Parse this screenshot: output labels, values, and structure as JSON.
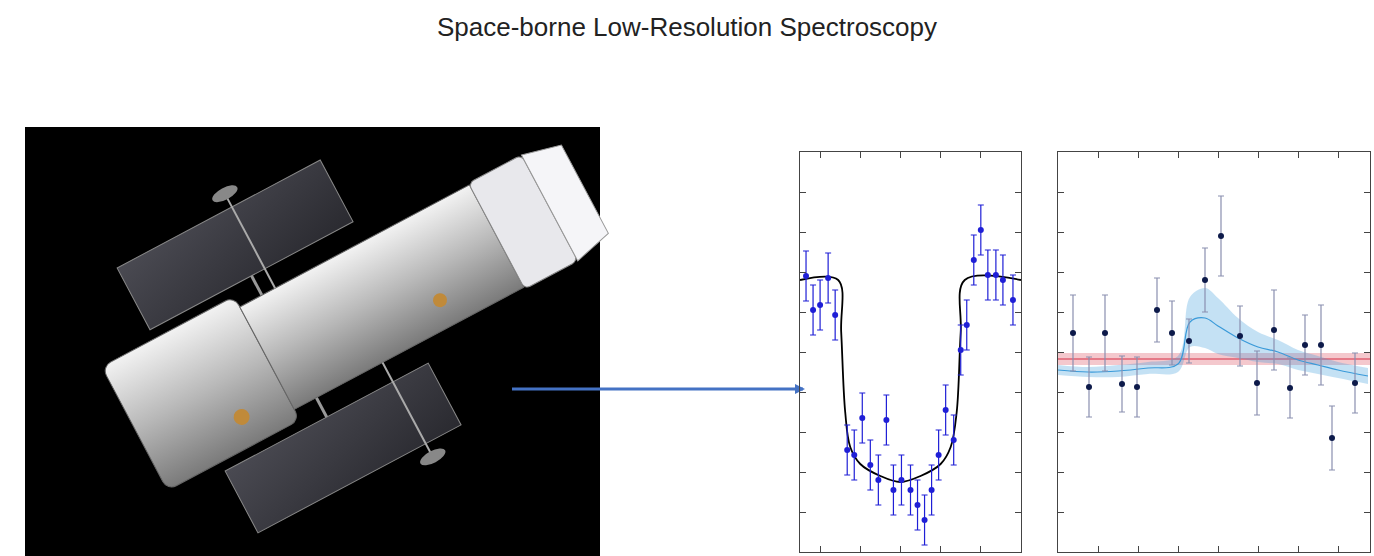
{
  "title": "Space-borne Low-Resolution Spectroscopy",
  "chart_data": [
    {
      "type": "scatter",
      "tick_labels": false,
      "color": "#1f1fd6",
      "x": [
        0.6,
        1.3,
        2.0,
        2.8,
        3.5,
        4.7,
        5.4,
        6.2,
        7.0,
        7.8,
        8.6,
        9.3,
        10.1,
        11.0,
        11.7,
        12.4,
        13.1,
        13.8,
        14.5,
        15.3,
        16.0,
        16.6,
        17.3,
        18.0,
        18.7,
        19.5,
        20.2,
        21.2
      ],
      "values": [
        27.6,
        24.2,
        24.7,
        27.4,
        23.7,
        10.2,
        9.7,
        13.4,
        8.7,
        7.2,
        13.2,
        6.2,
        7.2,
        6.2,
        4.7,
        3.2,
        6.2,
        9.7,
        14.2,
        11.2,
        20.2,
        22.7,
        29.2,
        32.2,
        27.7,
        27.7,
        27.2,
        25.2
      ],
      "errors": [
        2.5,
        2.5,
        2.5,
        2.5,
        2.5,
        2.5,
        2.5,
        2.5,
        2.5,
        2.5,
        2.5,
        2.5,
        2.5,
        2.5,
        2.5,
        2.5,
        2.5,
        2.5,
        2.5,
        2.5,
        2.5,
        2.5,
        2.5,
        2.5,
        2.5,
        2.5,
        2.5,
        2.5
      ],
      "model": {
        "color": "#000000",
        "x": [
          0,
          3.8,
          4.1,
          4.5,
          5.0,
          6,
          8,
          10,
          12,
          14,
          15,
          15.6,
          16,
          16.4,
          22
        ],
        "values": [
          27.2,
          27.2,
          22,
          14,
          10.5,
          8.8,
          7.6,
          7.0,
          7.6,
          8.8,
          10.5,
          14,
          22,
          27.2,
          27.2
        ]
      },
      "xlim": [
        0,
        22
      ],
      "ylim": [
        0,
        40
      ],
      "xticks": [
        2,
        6,
        10,
        14,
        18
      ],
      "yticks": [
        0,
        4,
        8,
        12,
        16,
        20,
        24,
        28,
        32,
        36,
        40
      ]
    },
    {
      "type": "scatter",
      "tick_labels": false,
      "color": "#0d1a4a",
      "x": [
        1.5,
        3.1,
        4.7,
        6.4,
        7.9,
        9.9,
        11.4,
        13.1,
        14.7,
        16.3,
        18.2,
        19.9,
        21.6,
        23.2,
        24.7,
        26.3,
        27.4,
        29.7
      ],
      "values": [
        21.9,
        16.5,
        21.9,
        16.8,
        16.5,
        24.2,
        21.9,
        21.1,
        27.2,
        31.6,
        21.6,
        16.9,
        22.2,
        16.4,
        20.7,
        20.7,
        11.4,
        16.9
      ],
      "errors": [
        3.8,
        3.0,
        3.8,
        2.8,
        3.0,
        3.2,
        3.2,
        2.2,
        3.2,
        4.0,
        3.0,
        3.2,
        4.0,
        3.0,
        3.0,
        4.0,
        3.2,
        3.0
      ],
      "model": {
        "color": "#3a9ad9",
        "x": [
          0,
          3,
          6,
          9,
          12,
          13.2,
          14.7,
          16,
          18,
          20,
          22,
          24,
          26,
          28,
          31
        ],
        "values": [
          18.2,
          18.0,
          18.1,
          18.4,
          18.8,
          23.0,
          23.4,
          22.6,
          21.4,
          20.5,
          20.0,
          19.2,
          18.7,
          18.2,
          17.6
        ],
        "lower": [
          17.7,
          17.5,
          17.5,
          17.8,
          18.0,
          20.5,
          20.4,
          19.8,
          19.4,
          19.0,
          18.8,
          18.2,
          17.8,
          17.4,
          16.8
        ],
        "upper": [
          18.7,
          18.5,
          18.7,
          19.0,
          19.6,
          25.5,
          26.4,
          25.4,
          23.4,
          22.0,
          21.2,
          20.2,
          19.6,
          19.0,
          18.4
        ]
      },
      "reference": {
        "color": "#e06070",
        "value": 19.3,
        "lower": 18.7,
        "upper": 19.9
      },
      "xlim": [
        0,
        31.2
      ],
      "ylim": [
        0,
        40
      ],
      "xticks": [
        4,
        8,
        12,
        16,
        20,
        24,
        28
      ],
      "yticks": [
        0,
        4,
        8,
        12,
        16,
        20,
        24,
        28,
        32,
        36,
        40
      ]
    }
  ]
}
